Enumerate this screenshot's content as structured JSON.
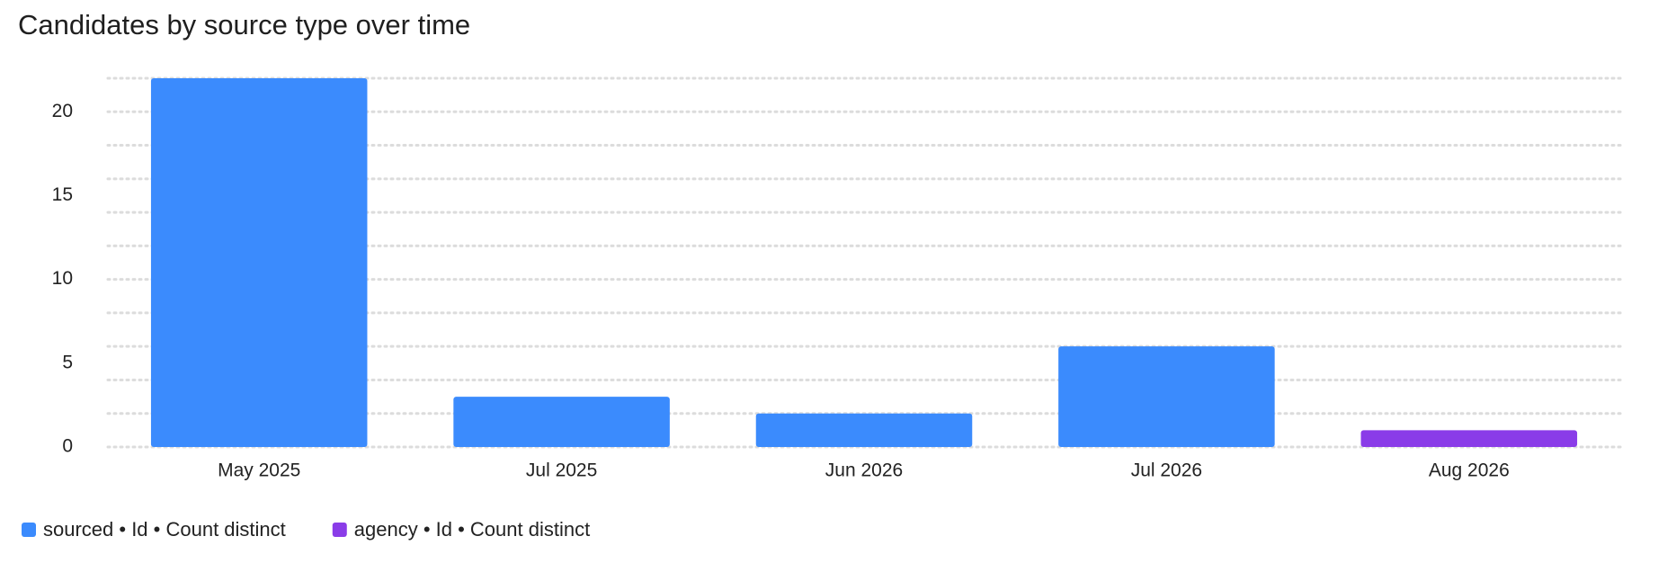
{
  "chart_data": {
    "type": "bar",
    "title": "Candidates by source type over time",
    "categories": [
      "May 2025",
      "Jul 2025",
      "Jun 2026",
      "Jul 2026",
      "Aug 2026"
    ],
    "series": [
      {
        "name": "sourced • Id • Count distinct",
        "color": "#3b8bfd",
        "values": [
          22,
          3,
          2,
          6,
          null
        ]
      },
      {
        "name": "agency • Id • Count distinct",
        "color": "#8a3ce8",
        "values": [
          null,
          null,
          null,
          null,
          1
        ]
      }
    ],
    "stacked": true,
    "ylim": [
      0,
      22
    ],
    "yticks": [
      0,
      5,
      10,
      15,
      20
    ],
    "grid_ticks": [
      0,
      2,
      4,
      6,
      8,
      10,
      12,
      14,
      16,
      18,
      20,
      22
    ],
    "grid": true,
    "legend": "bottom-left"
  }
}
